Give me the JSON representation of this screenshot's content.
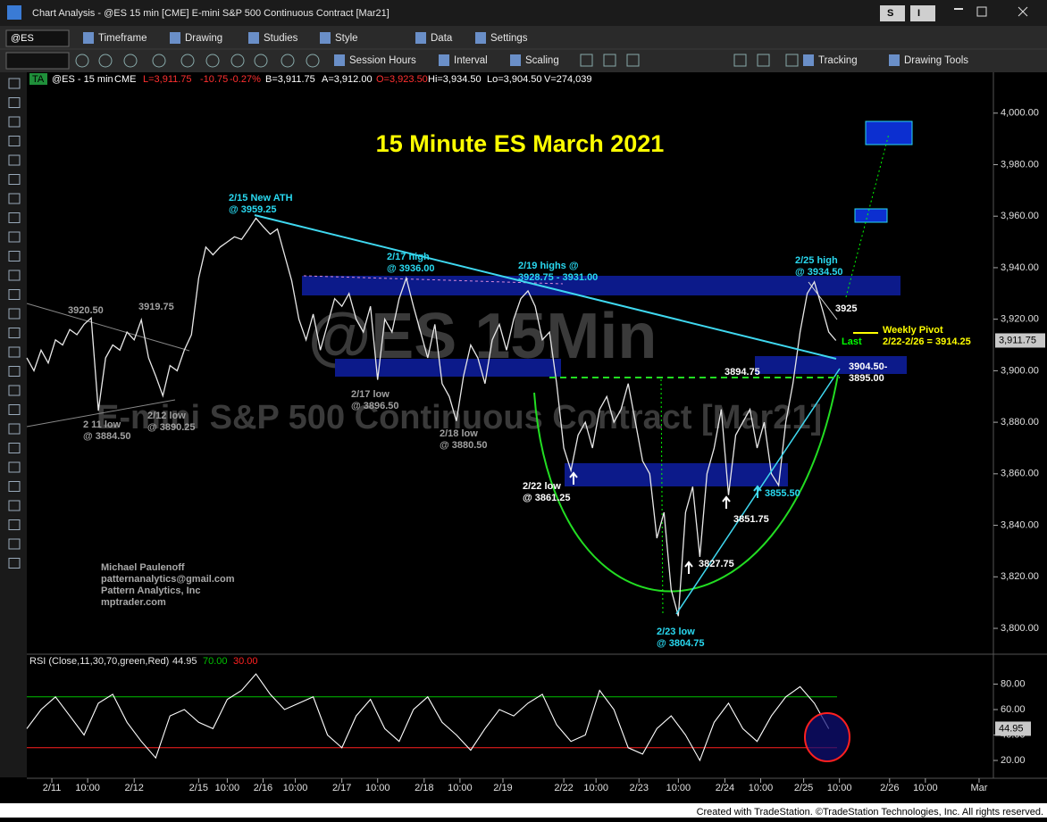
{
  "window": {
    "title": "Chart Analysis - @ES 15 min [CME] E-mini S&P 500 Continuous Contract [Mar21]",
    "buttons": [
      "S",
      "I"
    ]
  },
  "toolbar": {
    "symbol": "@ES",
    "row1": [
      "Timeframe",
      "Drawing",
      "Studies",
      "Style",
      "Data",
      "Settings"
    ],
    "row2": [
      "Session Hours",
      "Interval",
      "Scaling",
      "Tracking",
      "Drawing Tools"
    ]
  },
  "badge": "TA",
  "header": [
    "@ES - 15 min",
    "CME",
    "L=3,911.75",
    "-10.75",
    "-0.27%",
    "B=3,911.75",
    "A=3,912.00",
    "O=3,923.50",
    "Hi=3,934.50",
    "Lo=3,904.50",
    "V=274,039"
  ],
  "watermark": [
    "@ES 15Min",
    "E-mini S&P 500 Continuous Contract [Mar21]"
  ],
  "chart_data": [
    {
      "type": "line",
      "title": "15 Minute ES March 2021",
      "color": "#e8e8e8",
      "x": [
        0,
        2,
        4,
        6,
        8,
        10,
        12,
        14,
        16,
        18,
        20,
        22,
        24,
        26,
        28,
        30,
        32,
        34,
        36,
        38,
        40,
        42,
        44,
        46,
        48,
        50,
        52,
        54,
        56,
        58,
        60,
        62,
        64,
        66,
        68,
        70,
        72,
        74,
        76,
        78,
        80,
        82,
        84,
        86,
        88,
        90,
        92,
        94,
        96,
        98,
        100,
        102,
        104,
        106,
        108,
        110,
        112,
        114,
        116,
        118,
        120,
        122,
        124,
        126,
        128,
        130,
        132,
        134,
        136,
        138,
        140,
        142,
        144,
        146,
        148,
        150,
        152,
        154,
        156,
        158,
        160,
        162,
        164,
        166,
        168,
        170,
        172,
        174,
        176,
        178,
        180,
        182,
        184,
        186,
        188,
        190,
        192,
        194,
        196,
        198,
        200,
        202,
        204,
        206,
        208,
        210,
        212,
        214,
        216,
        218,
        220,
        222,
        224,
        226
      ],
      "values": [
        3905,
        3900,
        3908,
        3903,
        3912,
        3910,
        3916,
        3914,
        3918,
        3920.5,
        3884.5,
        3905,
        3910,
        3908,
        3915,
        3912,
        3919.75,
        3905,
        3898,
        3890.25,
        3902,
        3900,
        3908,
        3914,
        3936,
        3948,
        3945,
        3948,
        3950,
        3952,
        3951,
        3955,
        3959.25,
        3956,
        3953,
        3955,
        3945,
        3935,
        3920,
        3912,
        3922,
        3908,
        3918,
        3928,
        3925,
        3930,
        3920,
        3915,
        3925,
        3896.5,
        3920,
        3915,
        3928,
        3936,
        3925,
        3915,
        3905,
        3918,
        3895,
        3890,
        3880.5,
        3898,
        3910,
        3905,
        3895,
        3912,
        3918,
        3908,
        3920,
        3928,
        3931,
        3925,
        3912,
        3915,
        3895,
        3870,
        3861.25,
        3875,
        3880,
        3870,
        3885,
        3890,
        3880,
        3885,
        3895,
        3880,
        3865,
        3860,
        3835,
        3845,
        3815,
        3804.75,
        3845,
        3855,
        3827.75,
        3860,
        3870,
        3885,
        3851.75,
        3875,
        3880,
        3885,
        3870,
        3880,
        3860,
        3855.5,
        3880,
        3895,
        3915,
        3930,
        3934.5,
        3925,
        3915,
        3911.75
      ],
      "xlim": [
        0,
        270
      ],
      "ylim": [
        3791,
        4011
      ],
      "xticks": [
        {
          "value": 7,
          "label": "2/11"
        },
        {
          "value": 17,
          "label": "10:00"
        },
        {
          "value": 30,
          "label": "2/12"
        },
        {
          "value": 48,
          "label": "2/15"
        },
        {
          "value": 56,
          "label": "10:00"
        },
        {
          "value": 66,
          "label": "2/16"
        },
        {
          "value": 75,
          "label": "10:00"
        },
        {
          "value": 88,
          "label": "2/17"
        },
        {
          "value": 98,
          "label": "10:00"
        },
        {
          "value": 111,
          "label": "2/18"
        },
        {
          "value": 121,
          "label": "10:00"
        },
        {
          "value": 133,
          "label": "2/19"
        },
        {
          "value": 150,
          "label": "2/22"
        },
        {
          "value": 159,
          "label": "10:00"
        },
        {
          "value": 171,
          "label": "2/23"
        },
        {
          "value": 182,
          "label": "10:00"
        },
        {
          "value": 195,
          "label": "2/24"
        },
        {
          "value": 205,
          "label": "10:00"
        },
        {
          "value": 217,
          "label": "2/25"
        },
        {
          "value": 227,
          "label": "10:00"
        },
        {
          "value": 241,
          "label": "2/26"
        },
        {
          "value": 251,
          "label": "10:00"
        },
        {
          "value": 266,
          "label": "Mar"
        }
      ],
      "yticks": [
        {
          "value": 3800,
          "label": "3,800.00"
        },
        {
          "value": 3820,
          "label": "3,820.00"
        },
        {
          "value": 3840,
          "label": "3,840.00"
        },
        {
          "value": 3860,
          "label": "3,860.00"
        },
        {
          "value": 3880,
          "label": "3,880.00"
        },
        {
          "value": 3900,
          "label": "3,900.00"
        },
        {
          "value": 3920,
          "label": "3,920.00"
        },
        {
          "value": 3940,
          "label": "3,940.00"
        },
        {
          "value": 3960,
          "label": "3,960.00"
        },
        {
          "value": 3980,
          "label": "3,980.00"
        },
        {
          "value": 4000,
          "label": "4,000.00"
        }
      ],
      "last_value": {
        "value": 3911.75,
        "label": "3,911.75"
      },
      "annotations": [
        {
          "lines": [
            "2/15 New ATH",
            "@ 3959.25"
          ],
          "color": "#29d9f0"
        },
        {
          "lines": [
            "2/17 high",
            "@ 3936.00"
          ],
          "color": "#29d9f0"
        },
        {
          "lines": [
            "2/19 highs @",
            "3928.75 - 3931.00"
          ],
          "color": "#29d9f0"
        },
        {
          "lines": [
            "2/25 high",
            "@ 3934.50"
          ],
          "color": "#29d9f0"
        },
        {
          "lines": [
            "3920.50"
          ],
          "color": "#a0a0a0"
        },
        {
          "lines": [
            "3919.75"
          ],
          "color": "#a0a0a0"
        },
        {
          "lines": [
            "2 11 low",
            "@ 3884.50"
          ],
          "color": "#a0a0a0"
        },
        {
          "lines": [
            "2/12 low",
            "@ 3890.25"
          ],
          "color": "#a0a0a0"
        },
        {
          "lines": [
            "2/17 low",
            "@ 3896.50"
          ],
          "color": "#a0a0a0"
        },
        {
          "lines": [
            "2/18 low",
            "@ 3880.50"
          ],
          "color": "#a0a0a0"
        },
        {
          "lines": [
            "2/22 low",
            "@ 3861.25"
          ],
          "color": "#ffffff"
        },
        {
          "lines": [
            "2/23 low",
            "@ 3804.75"
          ],
          "color": "#29d9f0"
        },
        {
          "lines": [
            "3827.75"
          ],
          "color": "#ffffff"
        },
        {
          "lines": [
            "3851.75"
          ],
          "color": "#ffffff"
        },
        {
          "lines": [
            "3855.50"
          ],
          "color": "#29d9f0"
        },
        {
          "lines": [
            "3894.75"
          ],
          "color": "#ffffff"
        },
        {
          "lines": [
            "3925"
          ],
          "color": "#ffffff"
        },
        {
          "lines": [
            "3904.50-",
            "3895.00"
          ],
          "color": "#ffffff"
        },
        {
          "lines": [
            "Weekly Pivot",
            "2/22-2/26 = 3914.25"
          ],
          "color": "#ffff00"
        },
        {
          "lines": [
            "Last"
          ],
          "color": "#00ff00"
        },
        {
          "lines": [
            "Michael Paulenoff",
            "patternanalytics@gmail.com",
            "Pattern Analytics, Inc",
            "mptrader.com"
          ],
          "color": "#a8a8a8"
        }
      ]
    },
    {
      "type": "line",
      "title": "RSI (Close,11,30,70,green,Red)",
      "color": "#ffffff",
      "x": [
        0,
        4,
        8,
        12,
        16,
        20,
        24,
        28,
        32,
        36,
        40,
        44,
        48,
        52,
        56,
        60,
        64,
        68,
        72,
        76,
        80,
        84,
        88,
        92,
        96,
        100,
        104,
        108,
        112,
        116,
        120,
        124,
        128,
        132,
        136,
        140,
        144,
        148,
        152,
        156,
        160,
        164,
        168,
        172,
        176,
        180,
        184,
        188,
        192,
        196,
        200,
        204,
        208,
        212,
        216,
        220,
        224
      ],
      "values": [
        45,
        60,
        70,
        55,
        40,
        65,
        72,
        50,
        35,
        22,
        55,
        60,
        50,
        45,
        68,
        75,
        88,
        72,
        60,
        65,
        70,
        40,
        30,
        55,
        68,
        45,
        35,
        60,
        70,
        50,
        40,
        28,
        45,
        60,
        55,
        65,
        72,
        48,
        35,
        40,
        75,
        60,
        30,
        25,
        45,
        55,
        40,
        20,
        50,
        65,
        45,
        35,
        55,
        70,
        78,
        65,
        44.95
      ],
      "xlim": [
        0,
        270
      ],
      "ylim": [
        6,
        100
      ],
      "yticks": [
        {
          "value": 20,
          "label": "20.00"
        },
        {
          "value": 40,
          "label": "40.00"
        },
        {
          "value": 60,
          "label": "60.00"
        },
        {
          "value": 80,
          "label": "80.00"
        }
      ],
      "levels": [
        {
          "value": 70,
          "label": "70.00",
          "color": "#00c000"
        },
        {
          "value": 30,
          "label": "30.00",
          "color": "#ff2020"
        }
      ],
      "last_value": 44.95
    }
  ],
  "footer": "Created with TradeStation. ©TradeStation Technologies, Inc. All rights reserved."
}
